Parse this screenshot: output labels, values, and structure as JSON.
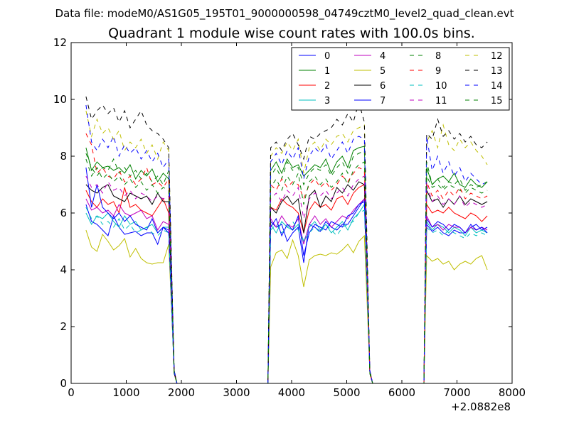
{
  "chart_data": {
    "type": "line",
    "suptitle": "Data file: modeM0/AS1G05_195T01_9000000598_04749cztM0_level2_quad_clean.evt",
    "title": "Quadrant 1 module wise count rates with 100.0s bins.",
    "xlabel": "",
    "ylabel": "",
    "x_offset_label": "+2.0882e8",
    "xlim": [
      0,
      8000
    ],
    "ylim": [
      0,
      12
    ],
    "x_ticks": [
      0,
      1000,
      2000,
      3000,
      4000,
      5000,
      6000,
      7000,
      8000
    ],
    "y_ticks": [
      0,
      2,
      4,
      6,
      8,
      10,
      12
    ],
    "x_tick_labels": [
      "0",
      "1000",
      "2000",
      "3000",
      "4000",
      "5000",
      "6000",
      "7000",
      "8000"
    ],
    "y_tick_labels": [
      "0",
      "2",
      "4",
      "6",
      "8",
      "10",
      "12"
    ],
    "grid": false,
    "legend_position": "top-right",
    "segments": [
      {
        "start": 270,
        "n": 16
      },
      {
        "start": 3620,
        "n": 18
      },
      {
        "start": 6450,
        "n": 12
      }
    ],
    "series": [
      {
        "name": "0",
        "color": "#0000ff",
        "style": "solid",
        "s1": [
          6.3,
          5.7,
          5.6,
          5.4,
          5.2,
          5.9,
          5.5,
          5.25,
          5.3,
          5.35,
          5.2,
          5.3,
          5.3,
          4.9,
          5.5,
          5.4
        ],
        "s2": [
          5.7,
          5.5,
          5.6,
          5.0,
          5.3,
          5.5,
          4.25,
          5.6,
          5.5,
          5.35,
          5.7,
          5.5,
          5.4,
          5.6,
          5.6,
          5.9,
          6.2,
          6.5
        ],
        "s3": [
          5.6,
          5.35,
          5.5,
          5.3,
          5.2,
          5.4,
          5.3,
          5.3,
          5.5,
          5.6,
          5.4,
          5.5
        ]
      },
      {
        "name": "1",
        "color": "#008000",
        "style": "solid",
        "s1": [
          8.3,
          7.5,
          7.8,
          7.6,
          7.65,
          7.5,
          7.6,
          7.4,
          7.7,
          7.2,
          7.5,
          7.3,
          7.55,
          7.1,
          7.4,
          7.2
        ],
        "s2": [
          7.5,
          7.8,
          7.4,
          7.9,
          7.6,
          7.7,
          7.3,
          7.5,
          7.7,
          7.6,
          7.9,
          7.4,
          7.8,
          8.0,
          7.6,
          8.2,
          8.3,
          8.35
        ],
        "s3": [
          7.6,
          7.0,
          7.2,
          7.3,
          7.1,
          7.4,
          7.0,
          6.9,
          7.2,
          7.0,
          6.9,
          7.1
        ]
      },
      {
        "name": "2",
        "color": "#ff0000",
        "style": "solid",
        "s1": [
          6.8,
          6.4,
          6.2,
          6.5,
          6.3,
          6.4,
          6.0,
          6.9,
          6.2,
          6.3,
          6.1,
          6.0,
          5.9,
          6.2,
          6.5,
          6.0
        ],
        "s2": [
          6.2,
          6.1,
          6.5,
          6.3,
          6.2,
          6.0,
          5.3,
          6.1,
          6.4,
          6.2,
          6.3,
          6.1,
          6.5,
          6.6,
          6.3,
          6.7,
          6.9,
          7.0
        ],
        "s3": [
          6.3,
          6.0,
          6.1,
          6.0,
          6.2,
          6.0,
          5.9,
          5.8,
          6.0,
          5.9,
          5.7,
          5.9
        ]
      },
      {
        "name": "3",
        "color": "#00bfbf",
        "style": "solid",
        "s1": [
          6.0,
          5.6,
          5.9,
          5.8,
          6.0,
          5.7,
          5.5,
          5.9,
          5.6,
          5.7,
          5.4,
          5.5,
          5.6,
          5.3,
          5.5,
          5.5
        ],
        "s2": [
          5.6,
          5.3,
          5.7,
          5.5,
          5.4,
          5.6,
          5.0,
          5.5,
          5.7,
          5.4,
          5.6,
          5.3,
          5.5,
          5.7,
          5.4,
          5.8,
          6.0,
          6.3
        ],
        "s3": [
          5.7,
          5.4,
          5.6,
          5.5,
          5.3,
          5.5,
          5.4,
          5.2,
          5.5,
          5.3,
          5.4,
          5.3
        ]
      },
      {
        "name": "4",
        "color": "#bf00bf",
        "style": "solid",
        "s1": [
          6.5,
          6.1,
          6.2,
          6.0,
          6.1,
          5.9,
          6.3,
          6.0,
          5.9,
          6.0,
          6.1,
          5.8,
          5.9,
          5.4,
          5.7,
          5.6
        ],
        "s2": [
          5.8,
          5.5,
          5.9,
          5.6,
          5.5,
          5.8,
          4.9,
          5.6,
          5.9,
          5.6,
          5.8,
          5.5,
          5.7,
          5.9,
          5.8,
          6.1,
          6.3,
          6.5
        ],
        "s3": [
          5.9,
          5.5,
          5.6,
          5.4,
          5.6,
          5.5,
          5.5,
          5.3,
          5.5,
          5.4,
          5.5,
          5.4
        ]
      },
      {
        "name": "5",
        "color": "#bfbf00",
        "style": "solid",
        "s1": [
          5.4,
          4.8,
          4.65,
          5.25,
          5.0,
          4.7,
          4.85,
          5.1,
          4.45,
          4.75,
          4.4,
          4.25,
          4.2,
          4.25,
          4.25,
          4.9
        ],
        "s2": [
          4.1,
          4.6,
          4.7,
          4.4,
          5.05,
          4.5,
          3.4,
          4.35,
          4.5,
          4.55,
          4.5,
          4.6,
          4.55,
          4.7,
          4.9,
          4.6,
          5.0,
          5.2
        ],
        "s3": [
          4.5,
          4.3,
          4.4,
          4.2,
          4.3,
          4.0,
          4.2,
          4.3,
          4.2,
          4.4,
          4.5,
          4.0
        ]
      },
      {
        "name": "6",
        "color": "#000000",
        "style": "solid",
        "s1": [
          7.0,
          6.8,
          6.7,
          6.9,
          7.0,
          6.6,
          6.5,
          6.4,
          6.7,
          6.6,
          6.5,
          6.6,
          6.3,
          6.7,
          6.4,
          6.4
        ],
        "s2": [
          6.2,
          6.0,
          6.4,
          6.6,
          6.3,
          6.5,
          5.3,
          6.6,
          6.8,
          6.2,
          6.6,
          6.4,
          6.9,
          6.7,
          7.0,
          6.8,
          7.1,
          7.0
        ],
        "s3": [
          6.8,
          6.4,
          6.5,
          6.2,
          6.5,
          6.3,
          6.6,
          6.3,
          6.5,
          6.4,
          6.3,
          6.4
        ]
      },
      {
        "name": "7",
        "color": "#0000ff",
        "style": "solid",
        "s1": [
          7.6,
          6.2,
          7.0,
          6.2,
          6.0,
          5.8,
          6.0,
          5.7,
          5.9,
          5.6,
          5.5,
          5.4,
          5.8,
          5.3,
          5.5,
          5.3
        ],
        "s2": [
          5.5,
          5.8,
          5.2,
          5.6,
          5.4,
          5.9,
          4.5,
          5.3,
          5.6,
          5.5,
          5.4,
          5.7,
          5.6,
          5.5,
          5.9,
          6.0,
          6.3,
          6.4
        ],
        "s3": [
          5.8,
          5.5,
          5.7,
          5.6,
          5.4,
          5.6,
          5.5,
          5.3,
          5.6,
          5.4,
          5.5,
          5.3
        ]
      },
      {
        "name": "8",
        "color": "#008000",
        "style": "dashed",
        "s1": [
          8.1,
          7.6,
          7.3,
          7.6,
          7.5,
          7.9,
          7.4,
          7.6,
          7.3,
          7.5,
          7.2,
          7.4,
          7.1,
          7.3,
          7.0,
          7.5
        ],
        "s2": [
          7.3,
          7.6,
          7.2,
          7.8,
          7.5,
          7.6,
          7.0,
          7.4,
          7.6,
          7.5,
          7.7,
          7.3,
          7.6,
          7.8,
          7.4,
          8.0,
          8.1,
          8.2
        ],
        "s3": [
          7.3,
          6.9,
          7.0,
          6.8,
          7.0,
          6.9,
          6.8,
          6.7,
          6.9,
          6.8,
          6.7,
          6.8
        ]
      },
      {
        "name": "9",
        "color": "#ff0000",
        "style": "dashed",
        "s1": [
          8.8,
          8.4,
          7.4,
          7.6,
          7.3,
          7.2,
          7.5,
          7.1,
          7.3,
          7.0,
          7.2,
          7.6,
          7.0,
          7.1,
          6.9,
          7.2
        ],
        "s2": [
          7.0,
          6.8,
          7.2,
          6.9,
          7.1,
          7.0,
          6.5,
          7.0,
          7.2,
          6.9,
          7.1,
          6.8,
          7.0,
          7.3,
          7.1,
          7.4,
          7.6,
          7.5
        ],
        "s3": [
          7.1,
          6.6,
          6.8,
          6.5,
          6.8,
          6.6,
          6.9,
          6.5,
          6.7,
          6.6,
          6.5,
          6.6
        ]
      },
      {
        "name": "10",
        "color": "#00bfbf",
        "style": "dashed",
        "s1": [
          6.2,
          5.8,
          5.9,
          5.6,
          5.7,
          5.5,
          5.8,
          5.4,
          5.6,
          5.3,
          5.4,
          5.5,
          5.3,
          5.2,
          5.4,
          5.3
        ],
        "s2": [
          5.4,
          5.6,
          5.3,
          5.5,
          5.7,
          5.4,
          5.0,
          5.3,
          5.5,
          5.3,
          5.6,
          5.4,
          5.2,
          5.5,
          5.6,
          5.7,
          6.0,
          6.1
        ],
        "s3": [
          5.5,
          5.3,
          5.4,
          5.2,
          5.4,
          5.3,
          5.2,
          5.1,
          5.3,
          5.2,
          5.3,
          5.2
        ]
      },
      {
        "name": "11",
        "color": "#bf00bf",
        "style": "dashed",
        "s1": [
          7.3,
          6.9,
          7.0,
          6.7,
          7.1,
          6.8,
          6.9,
          6.6,
          6.8,
          6.5,
          6.7,
          6.6,
          6.4,
          6.6,
          6.5,
          6.6
        ],
        "s2": [
          6.5,
          6.7,
          6.4,
          6.8,
          6.6,
          6.9,
          5.8,
          6.5,
          6.7,
          6.6,
          6.8,
          6.5,
          6.7,
          6.9,
          6.6,
          7.0,
          7.2,
          7.3
        ],
        "s3": [
          7.0,
          6.4,
          6.6,
          6.3,
          6.5,
          6.3,
          6.6,
          6.2,
          6.4,
          6.3,
          6.2,
          6.3
        ]
      },
      {
        "name": "12",
        "color": "#bfbf00",
        "style": "dashed",
        "s1": [
          9.6,
          8.7,
          9.3,
          8.8,
          9.0,
          8.6,
          8.9,
          8.2,
          8.5,
          8.3,
          8.6,
          8.1,
          8.4,
          7.9,
          8.5,
          8.2
        ],
        "s2": [
          8.0,
          8.3,
          8.1,
          8.5,
          8.2,
          8.6,
          7.4,
          8.3,
          8.5,
          8.2,
          8.6,
          8.4,
          8.7,
          8.8,
          8.5,
          8.9,
          9.0,
          9.1
        ],
        "s3": [
          8.5,
          8.9,
          8.3,
          9.1,
          8.4,
          8.2,
          8.6,
          8.3,
          8.5,
          8.2,
          8.0,
          7.7
        ]
      },
      {
        "name": "13",
        "color": "#000000",
        "style": "dashed",
        "s1": [
          10.1,
          9.3,
          9.6,
          9.8,
          9.5,
          9.7,
          9.2,
          9.6,
          9.0,
          9.3,
          9.6,
          9.1,
          8.9,
          8.8,
          8.6,
          8.3
        ],
        "s2": [
          8.3,
          8.5,
          8.2,
          8.6,
          8.8,
          8.4,
          7.9,
          8.7,
          8.6,
          8.8,
          8.9,
          9.0,
          9.3,
          9.1,
          9.5,
          9.2,
          9.9,
          9.2
        ],
        "s3": [
          8.8,
          8.6,
          9.3,
          8.7,
          8.9,
          8.6,
          8.8,
          8.5,
          8.7,
          8.4,
          8.3,
          8.5
        ]
      },
      {
        "name": "14",
        "color": "#0000ff",
        "style": "dashed",
        "s1": [
          9.8,
          8.5,
          8.2,
          8.6,
          8.3,
          8.7,
          8.0,
          8.4,
          8.1,
          8.3,
          7.9,
          8.2,
          7.8,
          8.1,
          7.6,
          7.9
        ],
        "s2": [
          7.8,
          8.1,
          7.7,
          8.2,
          7.9,
          8.3,
          7.2,
          8.0,
          8.3,
          8.1,
          8.4,
          7.9,
          8.2,
          8.5,
          8.1,
          8.6,
          8.7,
          8.6
        ],
        "s3": [
          8.7,
          7.5,
          8.0,
          7.4,
          7.8,
          7.3,
          7.6,
          7.1,
          7.4,
          7.2,
          7.0,
          7.1
        ]
      },
      {
        "name": "15",
        "color": "#008000",
        "style": "dashed",
        "s1": [
          7.9,
          7.3,
          7.6,
          7.2,
          7.4,
          7.1,
          7.3,
          7.0,
          7.2,
          6.9,
          7.1,
          6.8,
          7.0,
          6.7,
          6.9,
          6.8
        ],
        "s2": [
          6.9,
          7.2,
          6.8,
          7.3,
          7.0,
          7.4,
          6.3,
          7.1,
          7.3,
          7.0,
          7.2,
          6.9,
          7.1,
          7.4,
          7.0,
          7.5,
          7.7,
          7.8
        ],
        "s3": [
          7.8,
          7.0,
          7.2,
          6.9,
          7.1,
          7.0,
          7.2,
          6.8,
          7.0,
          6.9,
          7.0,
          7.1
        ]
      }
    ]
  }
}
